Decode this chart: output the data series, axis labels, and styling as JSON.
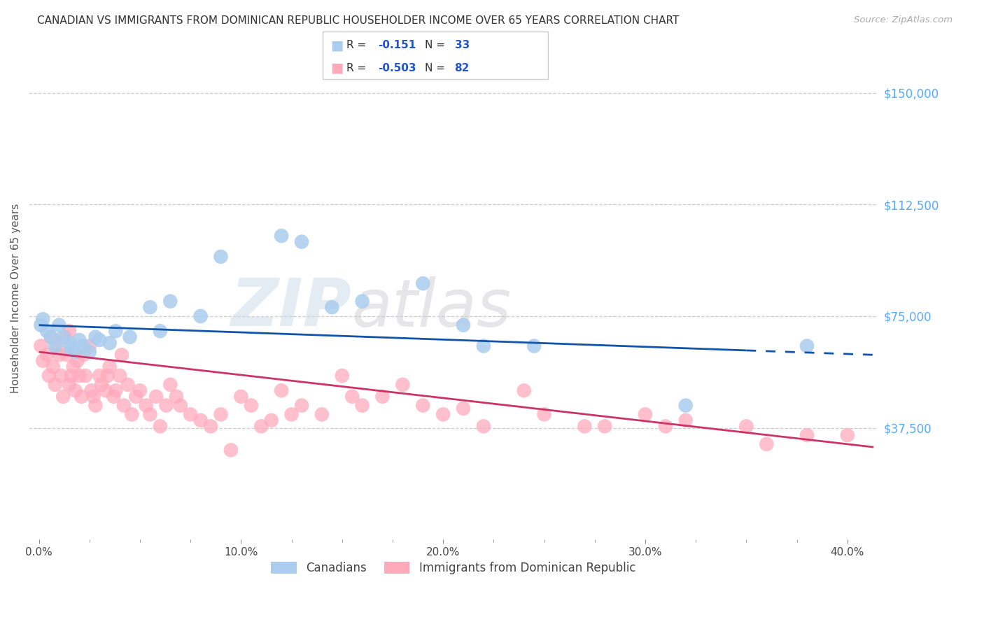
{
  "title": "CANADIAN VS IMMIGRANTS FROM DOMINICAN REPUBLIC HOUSEHOLDER INCOME OVER 65 YEARS CORRELATION CHART",
  "source": "Source: ZipAtlas.com",
  "ylabel": "Householder Income Over 65 years",
  "xlabel_ticks": [
    "0.0%",
    "10.0%",
    "20.0%",
    "30.0%",
    "40.0%"
  ],
  "xlabel_vals": [
    0.0,
    0.1,
    0.2,
    0.3,
    0.4
  ],
  "ylabel_ticks": [
    "$37,500",
    "$75,000",
    "$112,500",
    "$150,000"
  ],
  "ylabel_vals": [
    37500,
    75000,
    112500,
    150000
  ],
  "ylim": [
    0,
    162000
  ],
  "xlim": [
    -0.005,
    0.415
  ],
  "canadians_R": -0.151,
  "canadians_N": 33,
  "immigrants_R": -0.503,
  "immigrants_N": 82,
  "canadians_color": "#aaccee",
  "canadians_line_color": "#1155aa",
  "immigrants_color": "#ffaabb",
  "immigrants_line_color": "#cc3366",
  "watermark_zip": "ZIP",
  "watermark_atlas": "atlas",
  "canadians_x": [
    0.001,
    0.002,
    0.004,
    0.006,
    0.008,
    0.01,
    0.012,
    0.015,
    0.016,
    0.018,
    0.02,
    0.022,
    0.025,
    0.028,
    0.03,
    0.035,
    0.038,
    0.045,
    0.055,
    0.06,
    0.065,
    0.08,
    0.09,
    0.12,
    0.13,
    0.145,
    0.16,
    0.19,
    0.21,
    0.22,
    0.245,
    0.32,
    0.38
  ],
  "canadians_y": [
    72000,
    74000,
    70000,
    68000,
    65000,
    72000,
    68000,
    66000,
    64000,
    63000,
    67000,
    65000,
    63000,
    68000,
    67000,
    66000,
    70000,
    68000,
    78000,
    70000,
    80000,
    75000,
    95000,
    102000,
    100000,
    78000,
    80000,
    86000,
    72000,
    65000,
    65000,
    45000,
    65000
  ],
  "immigrants_x": [
    0.001,
    0.002,
    0.004,
    0.005,
    0.006,
    0.007,
    0.008,
    0.009,
    0.01,
    0.011,
    0.012,
    0.013,
    0.014,
    0.015,
    0.015,
    0.016,
    0.017,
    0.018,
    0.019,
    0.02,
    0.021,
    0.022,
    0.023,
    0.025,
    0.026,
    0.027,
    0.028,
    0.03,
    0.031,
    0.033,
    0.034,
    0.035,
    0.037,
    0.038,
    0.04,
    0.041,
    0.042,
    0.044,
    0.046,
    0.048,
    0.05,
    0.053,
    0.055,
    0.058,
    0.06,
    0.063,
    0.065,
    0.068,
    0.07,
    0.075,
    0.08,
    0.085,
    0.09,
    0.095,
    0.1,
    0.105,
    0.11,
    0.115,
    0.12,
    0.125,
    0.13,
    0.14,
    0.15,
    0.155,
    0.16,
    0.17,
    0.18,
    0.19,
    0.2,
    0.21,
    0.22,
    0.24,
    0.25,
    0.27,
    0.28,
    0.3,
    0.31,
    0.32,
    0.35,
    0.36,
    0.38,
    0.4
  ],
  "immigrants_y": [
    65000,
    60000,
    62000,
    55000,
    68000,
    58000,
    52000,
    65000,
    62000,
    55000,
    48000,
    68000,
    62000,
    70000,
    52000,
    55000,
    58000,
    50000,
    60000,
    55000,
    48000,
    62000,
    55000,
    65000,
    50000,
    48000,
    45000,
    55000,
    52000,
    50000,
    55000,
    58000,
    48000,
    50000,
    55000,
    62000,
    45000,
    52000,
    42000,
    48000,
    50000,
    45000,
    42000,
    48000,
    38000,
    45000,
    52000,
    48000,
    45000,
    42000,
    40000,
    38000,
    42000,
    30000,
    48000,
    45000,
    38000,
    40000,
    50000,
    42000,
    45000,
    42000,
    55000,
    48000,
    45000,
    48000,
    52000,
    45000,
    42000,
    44000,
    38000,
    50000,
    42000,
    38000,
    38000,
    42000,
    38000,
    40000,
    38000,
    32000,
    35000,
    35000
  ]
}
